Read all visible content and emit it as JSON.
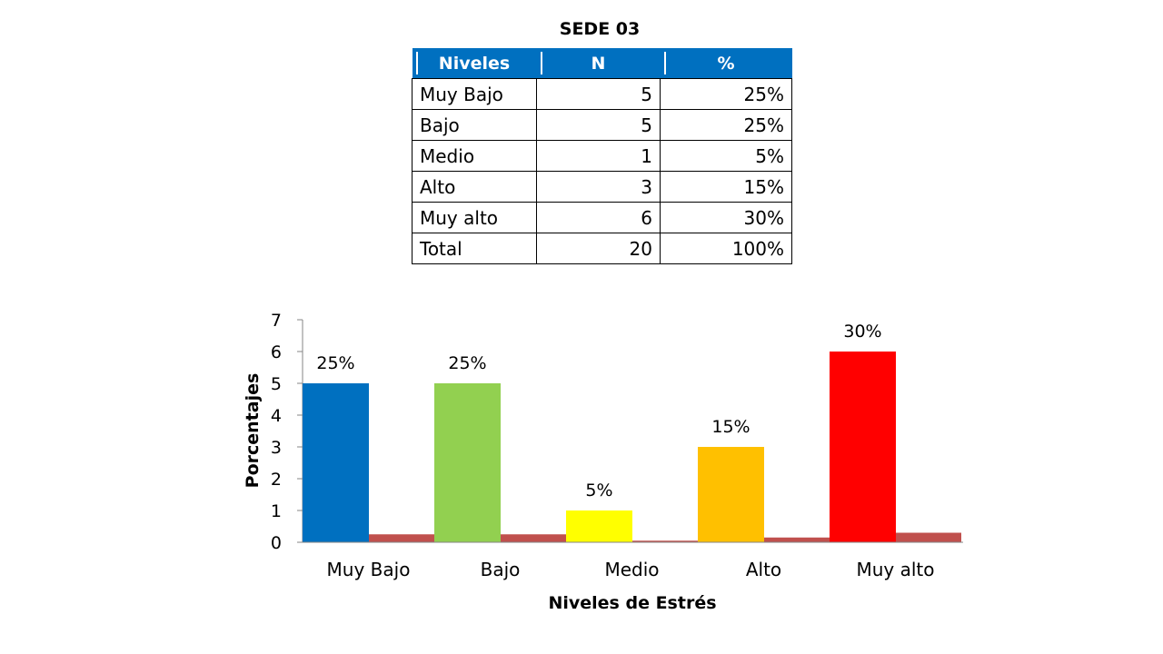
{
  "title": "SEDE 03",
  "table": {
    "headers": [
      "Niveles",
      "N",
      "%"
    ],
    "rows": [
      [
        "Muy Bajo",
        "5",
        "25%"
      ],
      [
        "Bajo",
        "5",
        "25%"
      ],
      [
        "Medio",
        "1",
        "5%"
      ],
      [
        "Alto",
        "3",
        "15%"
      ],
      [
        "Muy alto",
        "6",
        "30%"
      ],
      [
        "Total",
        "20",
        "100%"
      ]
    ]
  },
  "chart_data": {
    "type": "bar",
    "categories": [
      "Muy Bajo",
      "Bajo",
      "Medio",
      "Alto",
      "Muy alto"
    ],
    "series": [
      {
        "values": [
          5,
          5,
          1,
          3,
          6
        ],
        "colors": [
          "#0070c0",
          "#92d050",
          "#ffff00",
          "#ffc000",
          "#ff0000"
        ]
      },
      {
        "values": [
          0.25,
          0.25,
          0.05,
          0.15,
          0.3
        ],
        "color": "#c0504d"
      }
    ],
    "data_labels": [
      "25%",
      "25%",
      "5%",
      "15%",
      "30%"
    ],
    "xlabel": "Niveles de Estrés",
    "ylabel": "Porcentajes",
    "ylim": [
      0,
      7
    ],
    "yticks": [
      0,
      1,
      2,
      3,
      4,
      5,
      6,
      7
    ],
    "grid": false,
    "legend": "none"
  }
}
